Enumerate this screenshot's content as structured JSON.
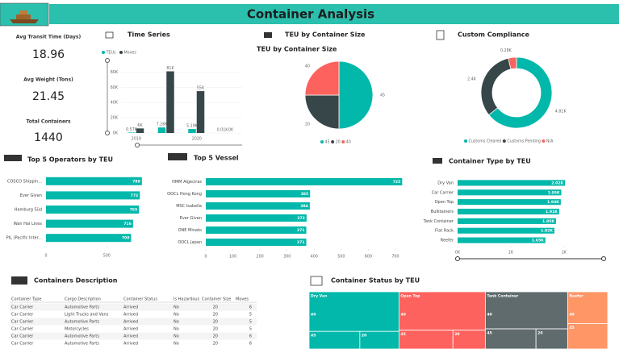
{
  "header": {
    "title": "Container Analysis"
  },
  "kpis": [
    {
      "label": "Avg Transit Time (Days)",
      "value": 18.96
    },
    {
      "label": "Avg Weight (Tons)",
      "value": 21.45
    },
    {
      "label": "Total Containers",
      "value": 1440
    }
  ],
  "chart_data": [
    {
      "type": "bar",
      "title": "Time Series",
      "categories": [
        "2019",
        null,
        "2020",
        null
      ],
      "series": [
        {
          "name": "TEUs",
          "color": "#01b8aa",
          "values": [
            0.57,
            7.26,
            5.19,
            0.01
          ],
          "value_labels": [
            "0.57K",
            "7.26K",
            "5.19K",
            "0.01K"
          ]
        },
        {
          "name": "Moves",
          "color": "#374649",
          "values": [
            6,
            81,
            55,
            0
          ],
          "value_labels": [
            "6K",
            "81K",
            "55K",
            "0K"
          ]
        }
      ],
      "ylim": [
        0,
        90
      ],
      "yticks": [
        {
          "value": 0,
          "label": "0K"
        },
        {
          "value": 20,
          "label": "20K"
        },
        {
          "value": 40,
          "label": "40K"
        },
        {
          "value": 60,
          "label": "60K"
        },
        {
          "value": 80,
          "label": "80K"
        }
      ]
    },
    {
      "type": "pie",
      "title": "TEU by Container Size",
      "subtitle": "TEU by Container Size",
      "categories": [
        "45",
        "20",
        "40"
      ],
      "values": [
        50,
        25,
        25
      ],
      "colors": [
        "#01b8aa",
        "#374649",
        "#fd625e"
      ]
    },
    {
      "type": "donut",
      "title": "Custom Compliance",
      "categories": [
        "Customs Cleared",
        "Customs Pending",
        "N/A"
      ],
      "values": [
        4.81,
        2.4,
        0.28
      ],
      "value_labels": [
        "4.81K",
        "2.4K",
        "0.28K"
      ],
      "colors": [
        "#01b8aa",
        "#374649",
        "#fd625e"
      ]
    },
    {
      "type": "hbar",
      "title": "Top 5 Operators by TEU",
      "categories": [
        "COSCO Shippin...",
        "Ever Given",
        "Hamburg Süd",
        "Wan Hai Lines",
        "PIL (Pacific Inter..."
      ],
      "values": [
        789,
        772,
        765,
        716,
        700
      ],
      "color": "#01b8aa",
      "xlim": [
        0,
        850
      ],
      "xticks": [
        0,
        500
      ]
    },
    {
      "type": "hbar",
      "title": "Top 5 Vessel",
      "categories": [
        "HMM Algeciras",
        "OOCL Hong Kong",
        "MSC Isabella",
        "Ever Given",
        "ONE Minato",
        "OOCL Japan"
      ],
      "values": [
        725,
        385,
        384,
        372,
        371,
        371
      ],
      "color": "#01b8aa",
      "xlim": [
        0,
        730
      ],
      "xticks": [
        0,
        100,
        200,
        300,
        400,
        500,
        600,
        700
      ]
    },
    {
      "type": "hbar",
      "title": "Container Type by TEU",
      "categories": [
        "Dry Van",
        "Car Carrier",
        "Open Top",
        "Bulktainers",
        "Tank Container",
        "Flat Rack",
        "Reefer"
      ],
      "values": [
        2.02,
        1.95,
        1.94,
        1.91,
        1.85,
        1.82,
        1.65
      ],
      "value_labels": [
        "2.02K",
        "1.95K",
        "1.94K",
        "1.91K",
        "1.85K",
        "1.82K",
        "1.65K"
      ],
      "color": "#01b8aa",
      "xlim": [
        0,
        2.2
      ],
      "xticks": [
        {
          "value": 0,
          "label": "0K"
        },
        {
          "value": 1,
          "label": "1K"
        },
        {
          "value": 2,
          "label": "2K"
        }
      ]
    },
    {
      "type": "treemap",
      "title": "Container Status by TEU",
      "series": [
        {
          "name": "Dry Van",
          "color": "#01b8aa",
          "values": [
            1.4,
            0.35,
            0.27
          ],
          "labels": [
            "40",
            "45",
            "20"
          ]
        },
        {
          "name": "Open Top",
          "color": "#fd625e",
          "values": [
            1.3,
            0.4,
            0.24
          ],
          "labels": [
            "40",
            "45",
            "20"
          ]
        },
        {
          "name": "Tank Container",
          "color": "#5f6b6d",
          "values": [
            1.2,
            0.4,
            0.25
          ],
          "labels": [
            "40",
            "45",
            "20"
          ]
        },
        {
          "name": "Reefer",
          "color": "#fe9666",
          "values": [
            0.5,
            0.4
          ],
          "labels": [
            "40",
            "45"
          ]
        }
      ]
    }
  ],
  "table": {
    "title": "Containers Description",
    "columns": [
      "Container Type",
      "Cargo Description",
      "Container Status",
      "Is Hazardous",
      "Container Size",
      "Moves"
    ],
    "rows": [
      [
        "Car Carrier",
        "Automotive Parts",
        "Arrived",
        "No",
        "20",
        "6"
      ],
      [
        "Car Carrier",
        "Light Trucks and Vans",
        "Arrived",
        "No",
        "20",
        "5"
      ],
      [
        "Car Carrier",
        "Automotive Parts",
        "Arrived",
        "No",
        "20",
        "5"
      ],
      [
        "Car Carrier",
        "Motorcycles",
        "Arrived",
        "No",
        "20",
        "5"
      ],
      [
        "Car Carrier",
        "Automotive Parts",
        "Arrived",
        "No",
        "20",
        "6"
      ],
      [
        "Car Carrier",
        "Automotive Parts",
        "Arrived",
        "No",
        "20",
        "6"
      ]
    ]
  }
}
